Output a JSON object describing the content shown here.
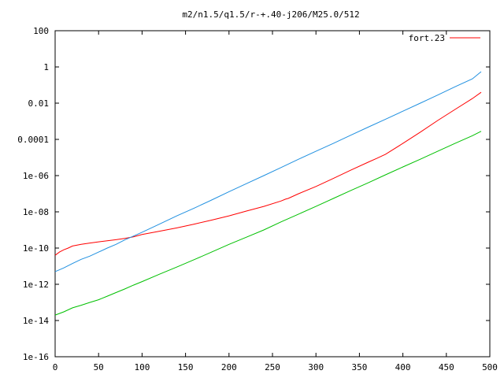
{
  "chart_data": {
    "type": "line",
    "title": "m2/n1.5/q1.5/r-+.40-j206/M25.0/512",
    "xlabel": "",
    "ylabel": "",
    "xlim": [
      0,
      500
    ],
    "ylim": [
      1e-16,
      100
    ],
    "yscale": "log",
    "grid": false,
    "legend_position": "top-right",
    "x_ticks": [
      0,
      50,
      100,
      150,
      200,
      250,
      300,
      350,
      400,
      450,
      500
    ],
    "x_tick_labels": [
      "0",
      "50",
      "100",
      "150",
      "200",
      "250",
      "300",
      "350",
      "400",
      "450",
      "500"
    ],
    "y_ticks": [
      1e-16,
      1e-14,
      1e-12,
      1e-10,
      1e-08,
      1e-06,
      0.0001,
      0.01,
      1,
      100
    ],
    "y_tick_labels": [
      "1e-16",
      "1e-14",
      "1e-12",
      "1e-10",
      "1e-08",
      "1e-06",
      "0.0001",
      "0.01",
      "1",
      "100"
    ],
    "series": [
      {
        "name": "fort.23",
        "color": "#ff0000",
        "points": [
          [
            0,
            4e-11
          ],
          [
            5,
            6e-11
          ],
          [
            10,
            8e-11
          ],
          [
            15,
            1e-10
          ],
          [
            20,
            1.3e-10
          ],
          [
            30,
            1.6e-10
          ],
          [
            40,
            1.9e-10
          ],
          [
            50,
            2.2e-10
          ],
          [
            60,
            2.5e-10
          ],
          [
            70,
            2.9e-10
          ],
          [
            80,
            3.4e-10
          ],
          [
            90,
            4.2e-10
          ],
          [
            100,
            5.6e-10
          ],
          [
            120,
            8.5e-10
          ],
          [
            140,
            1.3e-09
          ],
          [
            160,
            2.1e-09
          ],
          [
            180,
            3.5e-09
          ],
          [
            200,
            6e-09
          ],
          [
            220,
            1.1e-08
          ],
          [
            240,
            2e-08
          ],
          [
            260,
            4e-08
          ],
          [
            265,
            5e-08
          ],
          [
            268,
            5.5e-08
          ],
          [
            280,
            1e-07
          ],
          [
            300,
            2.5e-07
          ],
          [
            320,
            7e-07
          ],
          [
            340,
            2e-06
          ],
          [
            360,
            5.5e-06
          ],
          [
            370,
            9e-06
          ],
          [
            380,
            1.5e-05
          ],
          [
            400,
            6e-05
          ],
          [
            420,
            0.00025
          ],
          [
            440,
            0.0011
          ],
          [
            460,
            0.0045
          ],
          [
            480,
            0.018
          ],
          [
            490,
            0.04
          ]
        ]
      },
      {
        "name": "",
        "color": "#2090e0",
        "points": [
          [
            0,
            5e-12
          ],
          [
            10,
            8e-12
          ],
          [
            20,
            1.4e-11
          ],
          [
            30,
            2.4e-11
          ],
          [
            40,
            3.6e-11
          ],
          [
            50,
            6e-11
          ],
          [
            60,
            1e-10
          ],
          [
            70,
            1.6e-10
          ],
          [
            80,
            2.8e-10
          ],
          [
            90,
            4.6e-10
          ],
          [
            100,
            7.5e-10
          ],
          [
            120,
            2.1e-09
          ],
          [
            140,
            6e-09
          ],
          [
            160,
            1.6e-08
          ],
          [
            180,
            4.5e-08
          ],
          [
            200,
            1.3e-07
          ],
          [
            220,
            3.6e-07
          ],
          [
            240,
            1e-06
          ],
          [
            260,
            2.8e-06
          ],
          [
            280,
            8e-06
          ],
          [
            300,
            2.2e-05
          ],
          [
            320,
            6e-05
          ],
          [
            340,
            0.00017
          ],
          [
            360,
            0.00047
          ],
          [
            380,
            0.0013
          ],
          [
            400,
            0.0036
          ],
          [
            420,
            0.01
          ],
          [
            440,
            0.028
          ],
          [
            460,
            0.08
          ],
          [
            480,
            0.22
          ],
          [
            490,
            0.55
          ]
        ]
      },
      {
        "name": "",
        "color": "#00c000",
        "points": [
          [
            0,
            2e-14
          ],
          [
            10,
            3e-14
          ],
          [
            20,
            5e-14
          ],
          [
            30,
            7e-14
          ],
          [
            40,
            1e-13
          ],
          [
            50,
            1.4e-13
          ],
          [
            60,
            2.2e-13
          ],
          [
            70,
            3.5e-13
          ],
          [
            80,
            5.5e-13
          ],
          [
            90,
            9e-13
          ],
          [
            100,
            1.4e-12
          ],
          [
            120,
            3.6e-12
          ],
          [
            140,
            9e-12
          ],
          [
            160,
            2.3e-11
          ],
          [
            180,
            6e-11
          ],
          [
            200,
            1.6e-10
          ],
          [
            220,
            4e-10
          ],
          [
            240,
            1e-09
          ],
          [
            260,
            2.8e-09
          ],
          [
            280,
            7.5e-09
          ],
          [
            300,
            2e-08
          ],
          [
            320,
            5.5e-08
          ],
          [
            340,
            1.5e-07
          ],
          [
            360,
            4e-07
          ],
          [
            380,
            1.1e-06
          ],
          [
            400,
            3e-06
          ],
          [
            420,
            8e-06
          ],
          [
            440,
            2.2e-05
          ],
          [
            460,
            6e-05
          ],
          [
            480,
            0.00016
          ],
          [
            490,
            0.00028
          ]
        ]
      }
    ]
  }
}
